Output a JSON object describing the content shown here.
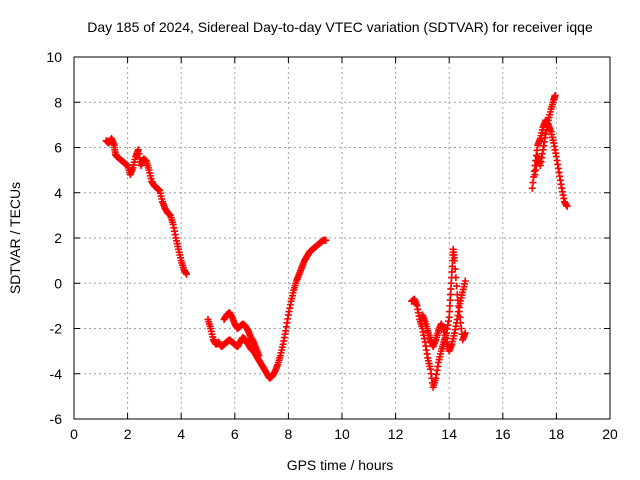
{
  "chart_data": {
    "type": "scatter",
    "title": "Day 185 of 2024, Sidereal Day-to-day VTEC variation (SDTVAR) for receiver iqqe",
    "xlabel": "GPS time / hours",
    "ylabel": "SDTVAR / TECUs",
    "xlim": [
      0,
      20
    ],
    "ylim": [
      -6,
      10
    ],
    "xticks": [
      0,
      2,
      4,
      6,
      8,
      10,
      12,
      14,
      16,
      18,
      20
    ],
    "yticks": [
      -6,
      -4,
      -2,
      0,
      2,
      4,
      6,
      8,
      10
    ],
    "grid": true,
    "marker": "plus",
    "color": "#ff0000",
    "series": [
      {
        "name": "segment-1",
        "x": [
          1.2,
          1.3,
          1.4,
          1.5,
          1.55,
          1.6,
          1.7,
          1.8,
          1.9,
          2.0,
          2.1,
          2.2,
          2.3,
          2.4,
          2.5,
          2.6,
          2.7,
          2.8,
          2.9,
          3.0,
          3.1,
          3.2,
          3.3,
          3.4,
          3.5,
          3.6,
          3.7,
          3.8,
          3.9,
          4.0,
          4.1,
          4.2
        ],
        "y": [
          6.3,
          6.2,
          6.4,
          6.1,
          5.7,
          5.6,
          5.5,
          5.4,
          5.3,
          5.2,
          4.8,
          5.1,
          5.6,
          5.9,
          5.2,
          5.5,
          5.4,
          5.0,
          4.5,
          4.3,
          4.2,
          4.1,
          3.6,
          3.3,
          3.1,
          3.0,
          2.6,
          2.0,
          1.5,
          1.0,
          0.6,
          0.4
        ]
      },
      {
        "name": "segment-2",
        "x": [
          5.0,
          5.1,
          5.2,
          5.3,
          5.4,
          5.5,
          5.6,
          5.7,
          5.8,
          5.9,
          6.0,
          6.1,
          6.2,
          6.3,
          6.4,
          6.5,
          6.6,
          6.7,
          6.8,
          6.9,
          7.0,
          7.1,
          7.2,
          7.3,
          7.4,
          7.5,
          7.6,
          7.7,
          7.8,
          7.9,
          8.0,
          8.1,
          8.2,
          8.3,
          8.4,
          8.5,
          8.6,
          8.7,
          8.8,
          8.9,
          9.0,
          9.1,
          9.2,
          9.3,
          9.4
        ],
        "y": [
          -1.6,
          -2.0,
          -2.5,
          -2.7,
          -2.6,
          -2.8,
          -2.7,
          -2.6,
          -2.5,
          -2.6,
          -2.7,
          -2.8,
          -2.6,
          -2.4,
          -2.5,
          -2.7,
          -2.9,
          -3.0,
          -3.2,
          -3.4,
          -3.6,
          -3.8,
          -4.0,
          -4.2,
          -4.1,
          -3.9,
          -3.6,
          -3.2,
          -2.7,
          -2.1,
          -1.4,
          -0.8,
          -0.3,
          0.1,
          0.4,
          0.7,
          1.0,
          1.2,
          1.4,
          1.5,
          1.6,
          1.7,
          1.8,
          1.9,
          1.9
        ]
      },
      {
        "name": "segment-2-branch",
        "x": [
          5.6,
          5.7,
          5.8,
          5.9,
          6.0,
          6.1,
          6.2,
          6.3,
          6.4,
          6.5,
          6.6,
          6.7,
          6.8,
          6.9
        ],
        "y": [
          -1.6,
          -1.4,
          -1.3,
          -1.5,
          -1.8,
          -2.0,
          -1.9,
          -1.8,
          -1.9,
          -2.1,
          -2.4,
          -2.6,
          -2.9,
          -3.2
        ]
      },
      {
        "name": "segment-3",
        "x": [
          12.6,
          12.7,
          12.8,
          12.9,
          13.0,
          13.1,
          13.2,
          13.3,
          13.4,
          13.5,
          13.6,
          13.7,
          13.8,
          13.9,
          14.0,
          14.05,
          14.1,
          14.15,
          14.2,
          14.3,
          14.4,
          14.5,
          14.6
        ],
        "y": [
          -0.8,
          -0.7,
          -1.0,
          -1.6,
          -2.0,
          -2.6,
          -3.3,
          -3.8,
          -4.6,
          -4.2,
          -3.5,
          -3.0,
          -2.6,
          -2.2,
          -1.5,
          -0.5,
          0.5,
          1.5,
          1.0,
          -0.5,
          -1.5,
          -2.5,
          -2.2
        ]
      },
      {
        "name": "segment-3-branch",
        "x": [
          13.0,
          13.1,
          13.2,
          13.3,
          13.4,
          13.5,
          13.6,
          13.7,
          13.8,
          13.9,
          14.0,
          14.1,
          14.2,
          14.3,
          14.4,
          14.5,
          14.6
        ],
        "y": [
          -1.4,
          -1.7,
          -2.1,
          -2.5,
          -2.8,
          -2.5,
          -2.1,
          -1.8,
          -2.0,
          -2.6,
          -3.0,
          -2.7,
          -2.2,
          -1.6,
          -0.9,
          -0.4,
          0.1
        ]
      },
      {
        "name": "segment-4",
        "x": [
          17.1,
          17.2,
          17.3,
          17.4,
          17.5,
          17.6,
          17.7,
          17.8,
          17.9,
          18.0,
          18.1,
          18.2,
          18.3,
          18.4
        ],
        "y": [
          4.2,
          5.2,
          6.1,
          6.4,
          6.9,
          7.2,
          7.0,
          6.7,
          6.2,
          5.6,
          4.9,
          4.2,
          3.6,
          3.4
        ]
      },
      {
        "name": "segment-4-branch",
        "x": [
          17.2,
          17.3,
          17.4,
          17.5,
          17.6,
          17.7,
          17.8,
          17.9,
          17.95
        ],
        "y": [
          4.8,
          5.6,
          5.2,
          5.9,
          6.6,
          7.2,
          7.7,
          8.1,
          8.3
        ]
      }
    ]
  }
}
